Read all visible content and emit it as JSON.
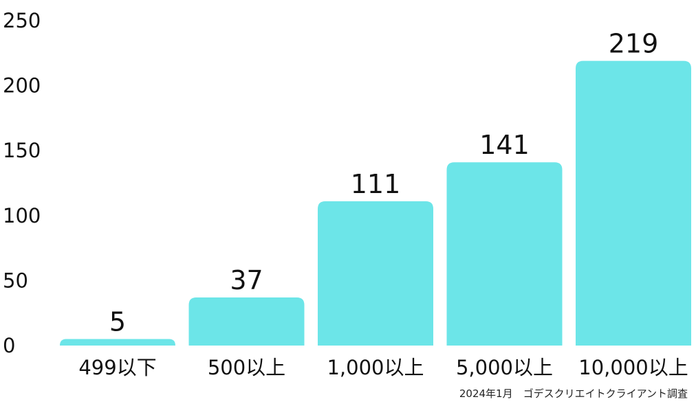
{
  "chart_data": {
    "type": "bar",
    "categories": [
      "499以下",
      "500以上",
      "1,000以上",
      "5,000以上",
      "10,000以上"
    ],
    "values": [
      5,
      37,
      111,
      141,
      219
    ],
    "yticks": [
      "0",
      "50",
      "100",
      "150",
      "200",
      "250"
    ],
    "ylim": [
      0,
      250
    ],
    "grid": false,
    "bar_color": "#6ce5e8",
    "footnote": "2024年1月　ゴデスクリエイトクライアント調査"
  }
}
